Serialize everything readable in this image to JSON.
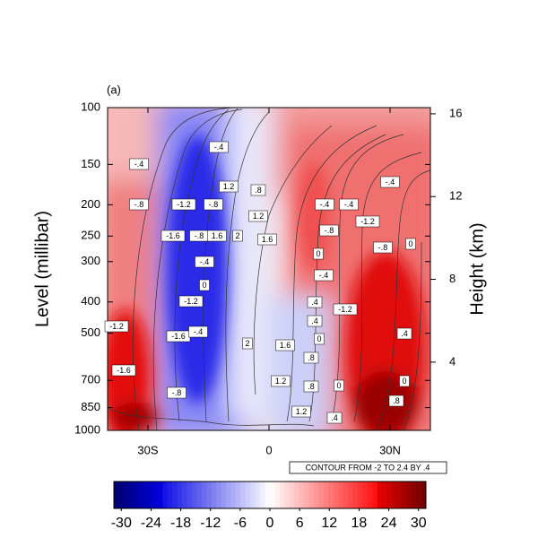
{
  "chart_data": {
    "type": "contour",
    "panel_label": "(a)",
    "ylabel": "Level (millibar)",
    "y2label": "Height (km)",
    "contour_note": "CONTOUR FROM -2 TO 2.4 BY .4",
    "xlim": [
      -40,
      40
    ],
    "xticks": [
      {
        "value": -30,
        "label": "30S"
      },
      0,
      {
        "value": 30,
        "label": "30N"
      }
    ],
    "ylim": [
      1000,
      100
    ],
    "yscale": "log",
    "yticks": [
      100,
      150,
      200,
      250,
      300,
      400,
      500,
      700,
      850,
      1000
    ],
    "y2lim": [
      0.7,
      16.3
    ],
    "y2ticks": [
      4,
      8,
      12,
      16
    ],
    "colorbar": {
      "lim": [
        -31.5,
        31.5
      ],
      "ticks": [
        -30,
        -24,
        -18,
        -12,
        -6,
        0,
        6,
        12,
        18,
        24,
        30
      ]
    },
    "contour_labels": [
      {
        "value": -0.4,
        "label": "-.4"
      },
      {
        "value": -0.8,
        "label": "-.8"
      },
      {
        "value": -0.4,
        "label": "-.4"
      },
      {
        "value": -1.2,
        "label": "-1.2"
      },
      {
        "value": -0.8,
        "label": "-.8"
      },
      {
        "value": 1.2,
        "label": "1.2"
      },
      {
        "value": 0.8,
        "label": ".8"
      },
      {
        "value": 1.2,
        "label": "1.2"
      },
      {
        "value": -1.6,
        "label": "-1.6"
      },
      {
        "value": -0.8,
        "label": "-.8"
      },
      {
        "value": 1.6,
        "label": "1.6"
      },
      {
        "value": 2,
        "label": "2"
      },
      {
        "value": 1.6,
        "label": "1.6"
      },
      {
        "value": -0.4,
        "label": "-.4"
      },
      {
        "value": 0,
        "label": "0"
      },
      {
        "value": -1.2,
        "label": "-1.2"
      },
      {
        "value": -1.6,
        "label": "-1.6"
      },
      {
        "value": -0.4,
        "label": "-.4"
      },
      {
        "value": 2,
        "label": "2"
      },
      {
        "value": 1.6,
        "label": "1.6"
      },
      {
        "value": -1.2,
        "label": "-1.2"
      },
      {
        "value": -1.6,
        "label": "-1.6"
      },
      {
        "value": -0.8,
        "label": "-.8"
      },
      {
        "value": 1.2,
        "label": "1.2"
      },
      {
        "value": 0.8,
        "label": ".8"
      },
      {
        "value": 0.8,
        "label": ".8"
      },
      {
        "value": 1.2,
        "label": "1.2"
      },
      {
        "value": 0.4,
        "label": ".4"
      },
      {
        "value": 0,
        "label": "0"
      },
      {
        "value": -0.4,
        "label": "-.4"
      },
      {
        "value": -0.8,
        "label": "-.8"
      },
      {
        "value": 0,
        "label": "0"
      },
      {
        "value": -0.4,
        "label": "-.4"
      },
      {
        "value": 0.4,
        "label": ".4"
      },
      {
        "value": 0.4,
        "label": ".4"
      },
      {
        "value": 0,
        "label": "0"
      },
      {
        "value": -0.4,
        "label": "-.4"
      },
      {
        "value": -1.2,
        "label": "-1.2"
      },
      {
        "value": -0.8,
        "label": "-.8"
      },
      {
        "value": 0,
        "label": "0"
      },
      {
        "value": -1.2,
        "label": "-1.2"
      },
      {
        "value": -0.4,
        "label": "-.4"
      },
      {
        "value": 0.4,
        "label": ".4"
      },
      {
        "value": 0,
        "label": "0"
      },
      {
        "value": 0.8,
        "label": ".8"
      }
    ]
  }
}
